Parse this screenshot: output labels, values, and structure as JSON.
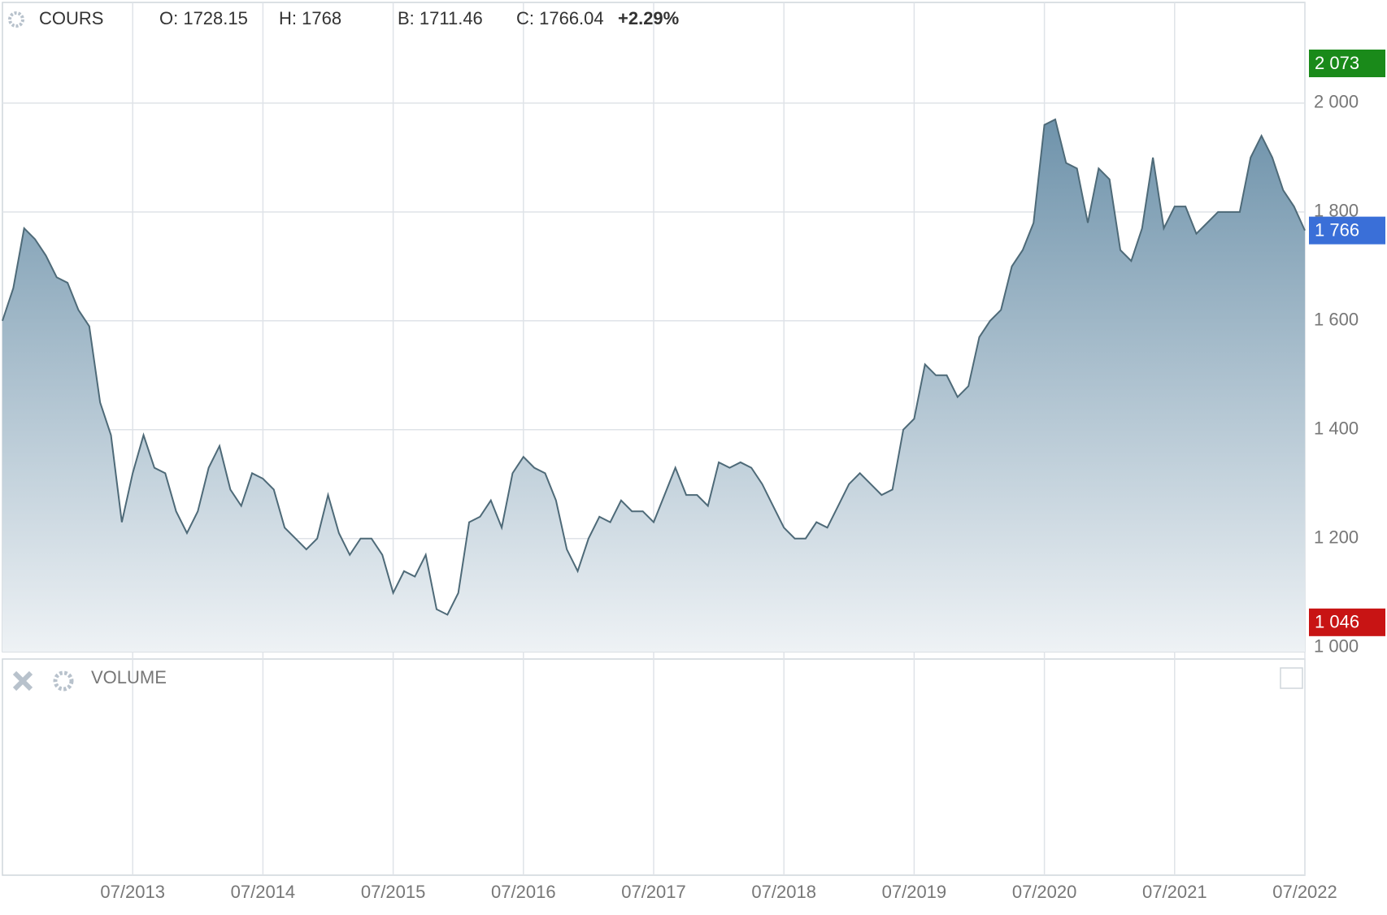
{
  "chart_data": {
    "type": "area",
    "title": "COURS",
    "ohlc": [
      "O: 1728.15",
      "H: 1768",
      "B: 1711.46",
      "C: 1766.04"
    ],
    "change": "+2.29%",
    "change_color": "#1a8a1a",
    "volume_title": "VOLUME",
    "color": "#4e6a78",
    "fill_top": "#6f93ab",
    "fill_bottom": "#eef2f5",
    "x": [
      "07/2012",
      "08/2012",
      "09/2012",
      "10/2012",
      "11/2012",
      "12/2012",
      "01/2013",
      "02/2013",
      "03/2013",
      "04/2013",
      "05/2013",
      "06/2013",
      "07/2013",
      "08/2013",
      "09/2013",
      "10/2013",
      "11/2013",
      "12/2013",
      "01/2014",
      "02/2014",
      "03/2014",
      "04/2014",
      "05/2014",
      "06/2014",
      "07/2014",
      "08/2014",
      "09/2014",
      "10/2014",
      "11/2014",
      "12/2014",
      "01/2015",
      "02/2015",
      "03/2015",
      "04/2015",
      "05/2015",
      "06/2015",
      "07/2015",
      "08/2015",
      "09/2015",
      "10/2015",
      "11/2015",
      "12/2015",
      "01/2016",
      "02/2016",
      "03/2016",
      "04/2016",
      "05/2016",
      "06/2016",
      "07/2016",
      "08/2016",
      "09/2016",
      "10/2016",
      "11/2016",
      "12/2016",
      "01/2017",
      "02/2017",
      "03/2017",
      "04/2017",
      "05/2017",
      "06/2017",
      "07/2017",
      "08/2017",
      "09/2017",
      "10/2017",
      "11/2017",
      "12/2017",
      "01/2018",
      "02/2018",
      "03/2018",
      "04/2018",
      "05/2018",
      "06/2018",
      "07/2018",
      "08/2018",
      "09/2018",
      "10/2018",
      "11/2018",
      "12/2018",
      "01/2019",
      "02/2019",
      "03/2019",
      "04/2019",
      "05/2019",
      "06/2019",
      "07/2019",
      "08/2019",
      "09/2019",
      "10/2019",
      "11/2019",
      "12/2019",
      "01/2020",
      "02/2020",
      "03/2020",
      "04/2020",
      "05/2020",
      "06/2020",
      "07/2020",
      "08/2020",
      "09/2020",
      "10/2020",
      "11/2020",
      "12/2020",
      "01/2021",
      "02/2021",
      "03/2021",
      "04/2021",
      "05/2021",
      "06/2021",
      "07/2021",
      "08/2021",
      "09/2021",
      "10/2021",
      "11/2021",
      "12/2021",
      "01/2022",
      "02/2022",
      "03/2022",
      "04/2022",
      "05/2022",
      "06/2022",
      "07/2022"
    ],
    "values": [
      1600,
      1660,
      1770,
      1750,
      1720,
      1680,
      1670,
      1620,
      1590,
      1450,
      1390,
      1230,
      1320,
      1390,
      1330,
      1320,
      1250,
      1210,
      1250,
      1330,
      1370,
      1290,
      1260,
      1320,
      1310,
      1290,
      1220,
      1200,
      1180,
      1200,
      1280,
      1210,
      1170,
      1200,
      1200,
      1170,
      1100,
      1140,
      1130,
      1170,
      1070,
      1060,
      1100,
      1230,
      1240,
      1270,
      1220,
      1320,
      1350,
      1330,
      1320,
      1270,
      1180,
      1140,
      1200,
      1240,
      1230,
      1270,
      1250,
      1250,
      1230,
      1280,
      1330,
      1280,
      1280,
      1260,
      1340,
      1330,
      1340,
      1330,
      1300,
      1260,
      1220,
      1200,
      1200,
      1230,
      1220,
      1260,
      1300,
      1320,
      1300,
      1280,
      1290,
      1400,
      1420,
      1520,
      1500,
      1500,
      1460,
      1480,
      1570,
      1600,
      1620,
      1700,
      1730,
      1780,
      1960,
      1970,
      1890,
      1880,
      1780,
      1880,
      1860,
      1730,
      1710,
      1770,
      1900,
      1770,
      1810,
      1810,
      1760,
      1780,
      1800,
      1800,
      1800,
      1900,
      1940,
      1900,
      1840,
      1810,
      1766
    ],
    "xticks": [
      "07/2013",
      "07/2014",
      "07/2015",
      "07/2016",
      "07/2017",
      "07/2018",
      "07/2019",
      "07/2020",
      "07/2021",
      "07/2022"
    ],
    "ylim": [
      992,
      2185
    ],
    "yticks": [
      {
        "value": 1000,
        "label": "1 000"
      },
      {
        "value": 1200,
        "label": "1 200"
      },
      {
        "value": 1400,
        "label": "1 400"
      },
      {
        "value": 1600,
        "label": "1 600"
      },
      {
        "value": 1800,
        "label": "1 800"
      },
      {
        "value": 2000,
        "label": "2 000"
      }
    ],
    "grid": true,
    "markers": [
      {
        "value": 2073,
        "label": "2 073",
        "color": "#1a8a1a"
      },
      {
        "value": 1766,
        "label": "1 766",
        "color": "#3a6fd8"
      },
      {
        "value": 1046,
        "label": "1 046",
        "color": "#c81414"
      }
    ]
  }
}
